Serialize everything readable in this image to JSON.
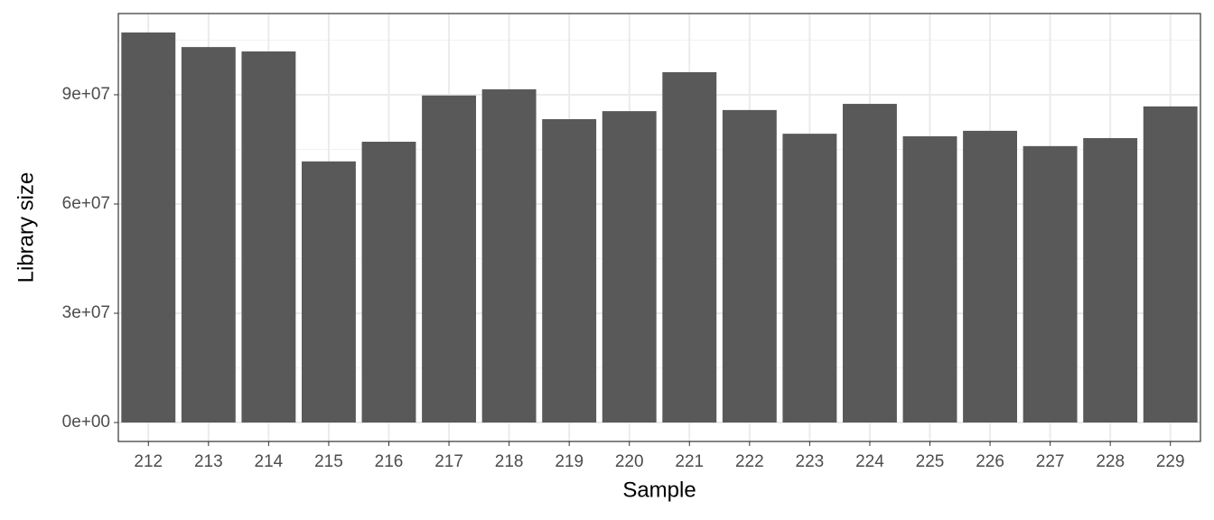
{
  "chart_data": {
    "type": "bar",
    "x_label": "Sample",
    "y_label": "Library size",
    "categories": [
      "212",
      "213",
      "214",
      "215",
      "216",
      "217",
      "218",
      "219",
      "220",
      "221",
      "222",
      "223",
      "224",
      "225",
      "226",
      "227",
      "228",
      "229"
    ],
    "values": [
      107100000,
      103100000,
      101900000,
      71700000,
      77100000,
      89800000,
      91500000,
      83300000,
      85500000,
      96200000,
      85800000,
      79300000,
      87500000,
      78600000,
      80100000,
      75900000,
      78100000,
      86800000
    ],
    "color": "#595959",
    "ylim": [
      -5200000,
      112300000
    ],
    "yticks": [
      {
        "value": 0,
        "label": "0e+00"
      },
      {
        "value": 30000000,
        "label": "3e+07"
      },
      {
        "value": 60000000,
        "label": "6e+07"
      },
      {
        "value": 90000000,
        "label": "9e+07"
      }
    ],
    "grid": true
  }
}
